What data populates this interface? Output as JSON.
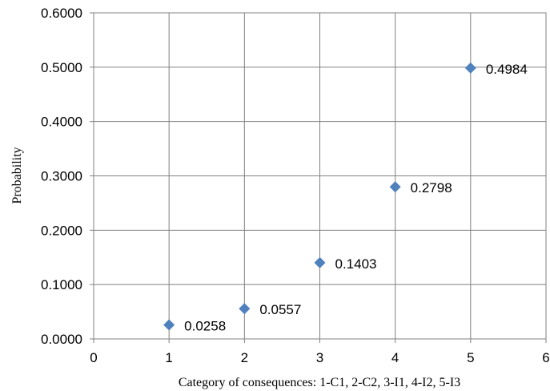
{
  "chart_data": {
    "type": "scatter",
    "title": "",
    "xlabel": "Category of consequences: 1-C1, 2-C2, 3-I1, 4-I2, 5-I3",
    "ylabel": "Probability",
    "xlim": [
      0,
      6
    ],
    "ylim": [
      0,
      0.6
    ],
    "x_ticks": [
      0,
      1,
      2,
      3,
      4,
      5,
      6
    ],
    "x_tick_labels": [
      "0",
      "1",
      "2",
      "3",
      "4",
      "5",
      "6"
    ],
    "y_ticks": [
      0,
      0.1,
      0.2,
      0.3,
      0.4,
      0.5,
      0.6
    ],
    "y_tick_labels": [
      "0.0000",
      "0.1000",
      "0.2000",
      "0.3000",
      "0.4000",
      "0.5000",
      "0.6000"
    ],
    "grid": true,
    "legend": "none",
    "marker": "diamond",
    "series": [
      {
        "color": "#4F81BD",
        "x": [
          1,
          2,
          3,
          4,
          5
        ],
        "y": [
          0.0258,
          0.0557,
          0.1403,
          0.2798,
          0.4984
        ],
        "labels": [
          "0.0258",
          "0.0557",
          "0.1403",
          "0.2798",
          "0.4984"
        ]
      }
    ]
  }
}
